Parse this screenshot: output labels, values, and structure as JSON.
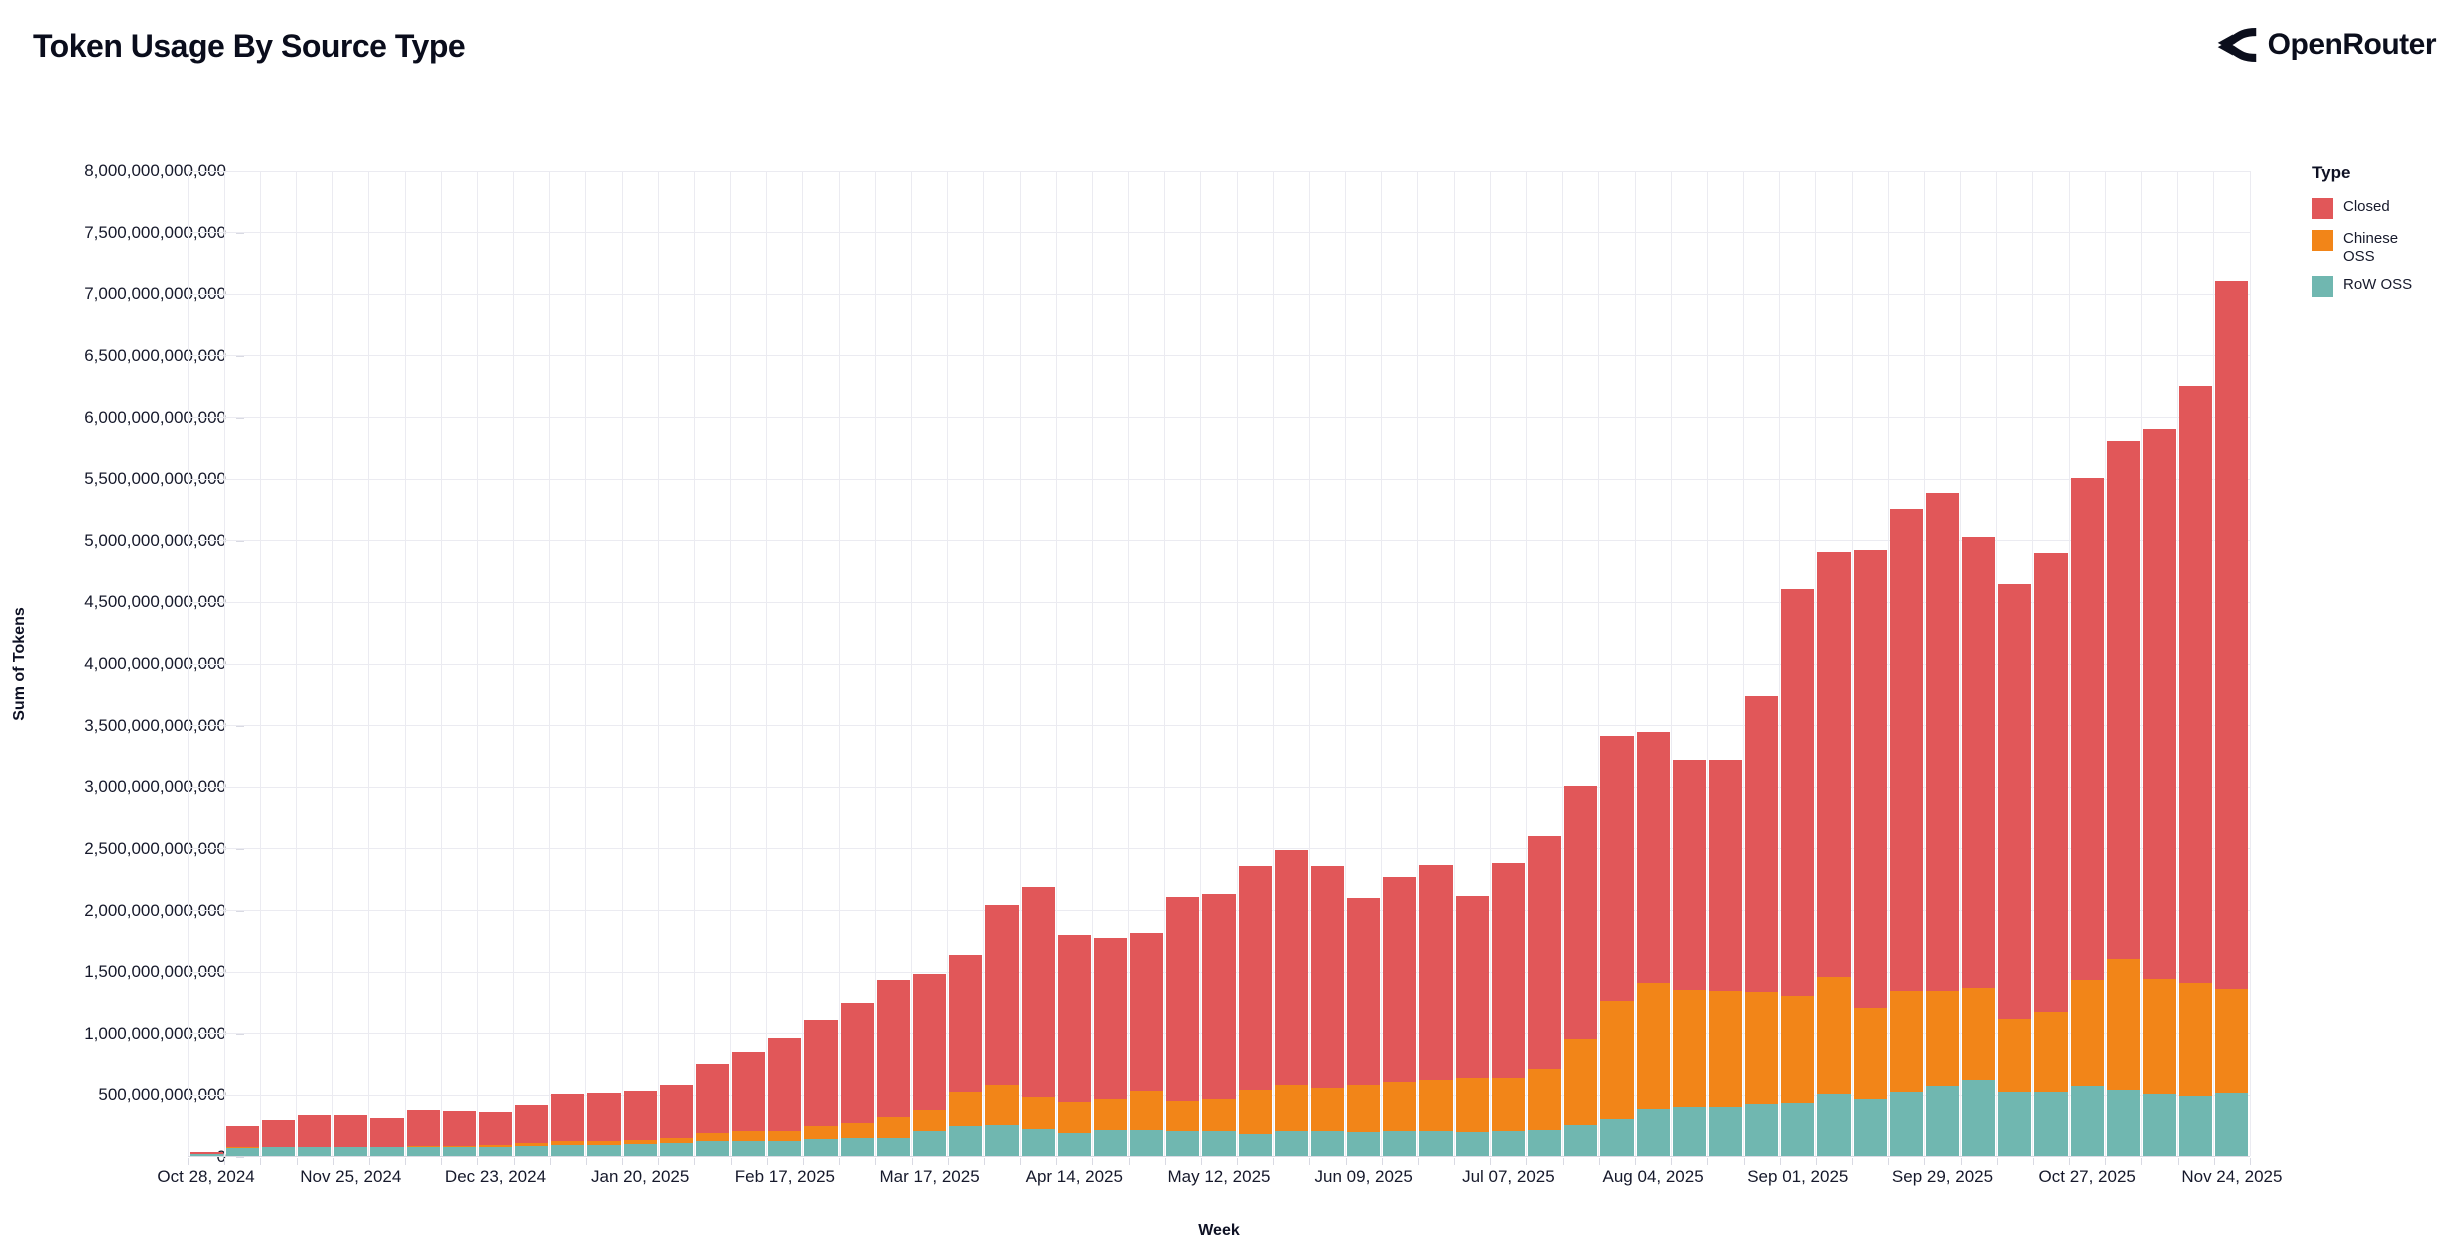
{
  "brand": {
    "name": "OpenRouter"
  },
  "colors": {
    "background": "#ffffff",
    "text": "#10132a",
    "grid": "#ebebf1",
    "axis_tick": "#d9dae3"
  },
  "chart_data": {
    "type": "bar",
    "stacked": true,
    "title": "Token Usage By Source Type",
    "xlabel": "Week",
    "ylabel": "Sum of Tokens",
    "ylim": [
      0,
      8000000000000
    ],
    "ytick_step": 500000000000,
    "grid": true,
    "legend_title": "Type",
    "legend_position": "top-right",
    "x_label_every": 4,
    "stack_order_bottom_to_top": [
      "RoW OSS",
      "Chinese OSS",
      "Closed"
    ],
    "categories": [
      "Oct 28, 2024",
      "Nov 04, 2024",
      "Nov 11, 2024",
      "Nov 18, 2024",
      "Nov 25, 2024",
      "Dec 02, 2024",
      "Dec 09, 2024",
      "Dec 16, 2024",
      "Dec 23, 2024",
      "Dec 30, 2024",
      "Jan 06, 2025",
      "Jan 13, 2025",
      "Jan 20, 2025",
      "Jan 27, 2025",
      "Feb 03, 2025",
      "Feb 10, 2025",
      "Feb 17, 2025",
      "Feb 24, 2025",
      "Mar 03, 2025",
      "Mar 10, 2025",
      "Mar 17, 2025",
      "Mar 24, 2025",
      "Mar 31, 2025",
      "Apr 07, 2025",
      "Apr 14, 2025",
      "Apr 21, 2025",
      "Apr 28, 2025",
      "May 05, 2025",
      "May 12, 2025",
      "May 19, 2025",
      "May 26, 2025",
      "Jun 02, 2025",
      "Jun 09, 2025",
      "Jun 16, 2025",
      "Jun 23, 2025",
      "Jun 30, 2025",
      "Jul 07, 2025",
      "Jul 14, 2025",
      "Jul 21, 2025",
      "Jul 28, 2025",
      "Aug 04, 2025",
      "Aug 11, 2025",
      "Aug 18, 2025",
      "Aug 25, 2025",
      "Sep 01, 2025",
      "Sep 08, 2025",
      "Sep 15, 2025",
      "Sep 22, 2025",
      "Sep 29, 2025",
      "Oct 06, 2025",
      "Oct 13, 2025",
      "Oct 20, 2025",
      "Oct 27, 2025",
      "Nov 03, 2025",
      "Nov 10, 2025",
      "Nov 17, 2025",
      "Nov 24, 2025"
    ],
    "x_labeled_ticks": [
      "Oct 28, 2024",
      "Nov 25, 2024",
      "Dec 23, 2024",
      "Jan 20, 2025",
      "Feb 17, 2025",
      "Mar 17, 2025",
      "Apr 14, 2025",
      "May 12, 2025",
      "Jun 09, 2025",
      "Jul 07, 2025",
      "Aug 04, 2025",
      "Sep 01, 2025",
      "Sep 29, 2025",
      "Oct 27, 2025",
      "Nov 24, 2025"
    ],
    "series": [
      {
        "name": "Closed",
        "color": "#e15759",
        "values": [
          15000000000,
          175000000000,
          220000000000,
          260000000000,
          260000000000,
          230000000000,
          285000000000,
          280000000000,
          265000000000,
          305000000000,
          380000000000,
          390000000000,
          395000000000,
          430000000000,
          565000000000,
          640000000000,
          755000000000,
          860000000000,
          970000000000,
          1110000000000,
          1105000000000,
          1110000000000,
          1465000000000,
          1705000000000,
          1355000000000,
          1310000000000,
          1285000000000,
          1650000000000,
          1665000000000,
          1815000000000,
          1905000000000,
          1800000000000,
          1515000000000,
          1660000000000,
          1740000000000,
          1480000000000,
          1750000000000,
          1890000000000,
          2050000000000,
          2150000000000,
          2040000000000,
          1860000000000,
          1870000000000,
          2400000000000,
          3300000000000,
          3450000000000,
          3720000000000,
          3910000000000,
          4045000000000,
          3660000000000,
          3525000000000,
          3725000000000,
          4075000000000,
          4205000000000,
          4460000000000,
          4845000000000,
          5745000000000
        ]
      },
      {
        "name": "Chinese OSS",
        "color": "#f28518",
        "values": [
          0,
          5000000000,
          5000000000,
          5000000000,
          5000000000,
          5000000000,
          10000000000,
          10000000000,
          15000000000,
          25000000000,
          30000000000,
          35000000000,
          35000000000,
          40000000000,
          65000000000,
          75000000000,
          80000000000,
          100000000000,
          120000000000,
          170000000000,
          170000000000,
          280000000000,
          320000000000,
          255000000000,
          245000000000,
          250000000000,
          310000000000,
          250000000000,
          265000000000,
          355000000000,
          370000000000,
          345000000000,
          380000000000,
          395000000000,
          415000000000,
          435000000000,
          425000000000,
          495000000000,
          700000000000,
          960000000000,
          1020000000000,
          950000000000,
          940000000000,
          910000000000,
          870000000000,
          950000000000,
          740000000000,
          820000000000,
          765000000000,
          745000000000,
          595000000000,
          645000000000,
          855000000000,
          1060000000000,
          940000000000,
          920000000000,
          845000000000
        ]
      },
      {
        "name": "RoW OSS",
        "color": "#70b7b0",
        "values": [
          15000000000,
          65000000000,
          70000000000,
          70000000000,
          70000000000,
          70000000000,
          75000000000,
          75000000000,
          75000000000,
          80000000000,
          90000000000,
          90000000000,
          95000000000,
          105000000000,
          120000000000,
          125000000000,
          125000000000,
          140000000000,
          150000000000,
          150000000000,
          205000000000,
          240000000000,
          255000000000,
          220000000000,
          190000000000,
          210000000000,
          215000000000,
          200000000000,
          200000000000,
          180000000000,
          205000000000,
          205000000000,
          195000000000,
          205000000000,
          205000000000,
          195000000000,
          205000000000,
          215000000000,
          250000000000,
          300000000000,
          380000000000,
          400000000000,
          400000000000,
          420000000000,
          430000000000,
          500000000000,
          460000000000,
          520000000000,
          570000000000,
          615000000000,
          520000000000,
          520000000000,
          570000000000,
          535000000000,
          500000000000,
          485000000000,
          510000000000
        ]
      }
    ]
  }
}
